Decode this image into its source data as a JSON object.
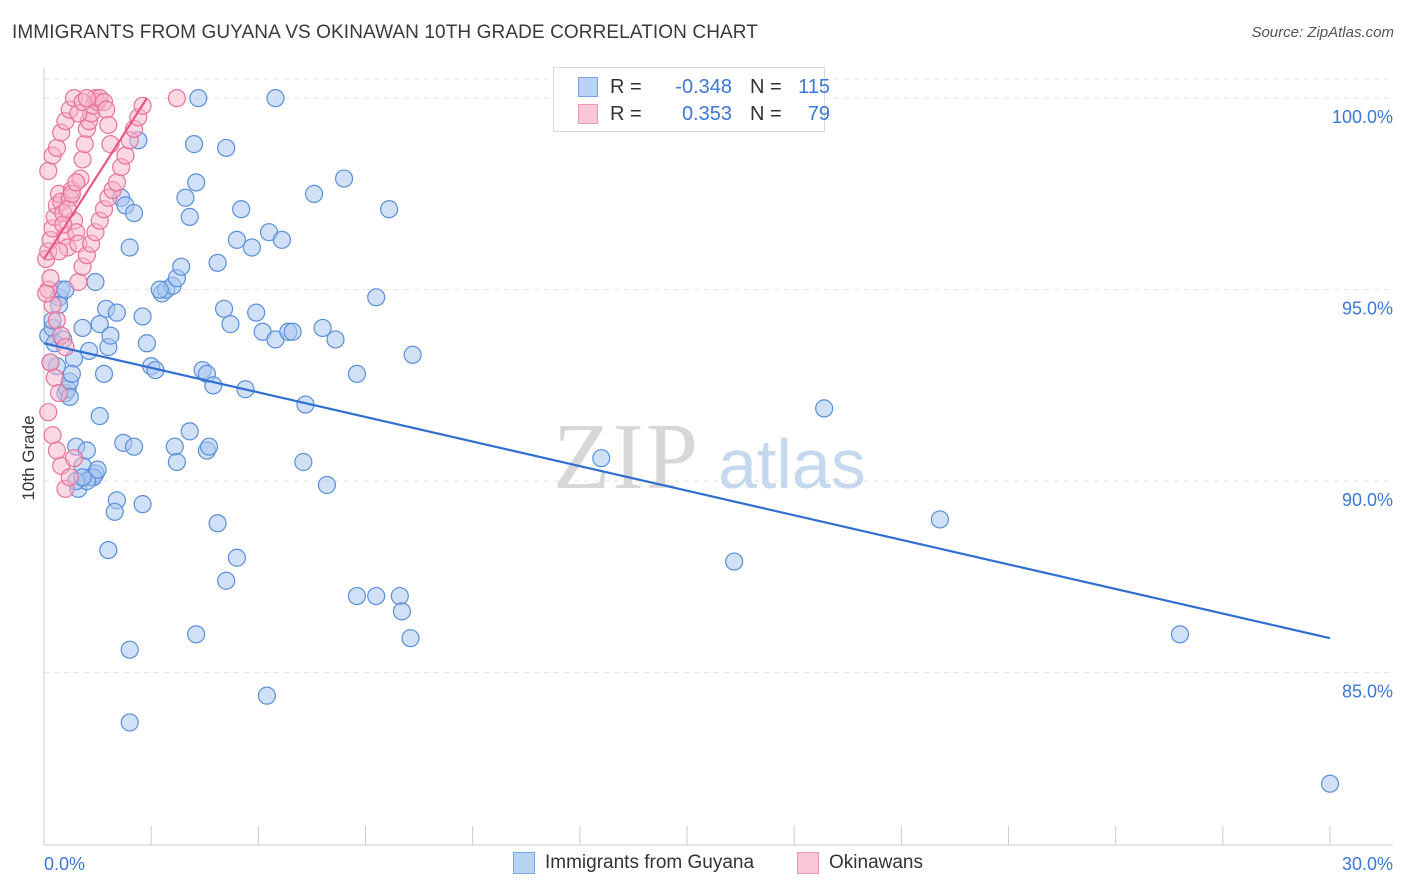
{
  "title": "IMMIGRANTS FROM GUYANA VS OKINAWAN 10TH GRADE CORRELATION CHART",
  "source": "Source: ZipAtlas.com",
  "watermark": {
    "zip": "ZIP",
    "atlas": "atlas"
  },
  "legend": {
    "rows": [
      {
        "r_label": "R =",
        "r_value": "-0.348",
        "n_label": "N =",
        "n_value": "115"
      },
      {
        "r_label": "R =",
        "r_value": "0.353",
        "n_label": "N =",
        "n_value": "79"
      }
    ]
  },
  "bottom_legend": [
    "Immigrants from Guyana",
    "Okinawans"
  ],
  "colors": {
    "blue_fill": "#a9c7f0",
    "blue_stroke": "#5b8fd9",
    "blue_line": "#2f6fd1",
    "pink_fill": "#f5b3c9",
    "pink_stroke": "#e8739b",
    "pink_line": "#e8588a",
    "axis_text": "#3b78d8",
    "grid": "#e3e3e3"
  },
  "chart_data": {
    "type": "scatter",
    "title": "IMMIGRANTS FROM GUYANA VS OKINAWAN 10TH GRADE CORRELATION CHART",
    "xlabel": "",
    "ylabel": "10th Grade",
    "xlim": [
      0,
      30
    ],
    "ylim": [
      80.5,
      100.5
    ],
    "x_tick_labels": [
      "0.0%",
      "30.0%"
    ],
    "y_ticks": [
      85,
      90,
      95,
      100
    ],
    "y_tick_labels": [
      "85.0%",
      "90.0%",
      "95.0%",
      "100.0%"
    ],
    "grid": "horizontal dashed",
    "series": [
      {
        "name": "Immigrants from Guyana",
        "color": "blue",
        "R": -0.348,
        "N": 115,
        "trend": {
          "x": [
            0.0,
            30.0
          ],
          "y": [
            93.6,
            85.9
          ]
        },
        "points": [
          [
            0.1,
            93.8
          ],
          [
            0.2,
            94.0
          ],
          [
            0.25,
            93.6
          ],
          [
            0.3,
            93.0
          ],
          [
            0.35,
            94.8
          ],
          [
            0.4,
            95.0
          ],
          [
            0.45,
            93.7
          ],
          [
            0.5,
            92.3
          ],
          [
            0.55,
            92.4
          ],
          [
            0.6,
            92.6
          ],
          [
            0.7,
            93.2
          ],
          [
            0.75,
            90.9
          ],
          [
            0.8,
            89.8
          ],
          [
            0.9,
            90.4
          ],
          [
            1.0,
            90.8
          ],
          [
            1.1,
            90.1
          ],
          [
            1.2,
            90.2
          ],
          [
            1.3,
            91.7
          ],
          [
            1.4,
            92.8
          ],
          [
            1.5,
            93.5
          ],
          [
            0.9,
            94.0
          ],
          [
            1.05,
            93.4
          ],
          [
            1.2,
            95.2
          ],
          [
            1.3,
            94.1
          ],
          [
            1.45,
            94.5
          ],
          [
            1.55,
            93.8
          ],
          [
            1.7,
            94.4
          ],
          [
            1.8,
            97.4
          ],
          [
            1.9,
            97.2
          ],
          [
            2.0,
            96.1
          ],
          [
            2.1,
            97.0
          ],
          [
            2.2,
            98.9
          ],
          [
            2.3,
            94.3
          ],
          [
            2.4,
            93.6
          ],
          [
            2.5,
            93.0
          ],
          [
            2.6,
            92.9
          ],
          [
            2.75,
            94.9
          ],
          [
            2.85,
            95.0
          ],
          [
            3.0,
            95.1
          ],
          [
            3.1,
            95.3
          ],
          [
            3.2,
            95.6
          ],
          [
            3.3,
            97.4
          ],
          [
            3.4,
            96.9
          ],
          [
            3.55,
            97.8
          ],
          [
            3.7,
            92.9
          ],
          [
            3.8,
            92.8
          ],
          [
            3.95,
            92.5
          ],
          [
            4.05,
            95.7
          ],
          [
            4.2,
            94.5
          ],
          [
            4.35,
            94.1
          ],
          [
            4.5,
            96.3
          ],
          [
            4.6,
            97.1
          ],
          [
            4.7,
            92.4
          ],
          [
            4.85,
            96.1
          ],
          [
            4.95,
            94.4
          ],
          [
            5.1,
            93.9
          ],
          [
            5.25,
            96.5
          ],
          [
            5.4,
            93.7
          ],
          [
            5.55,
            96.3
          ],
          [
            5.7,
            93.9
          ],
          [
            5.8,
            93.9
          ],
          [
            6.1,
            92.0
          ],
          [
            6.3,
            97.5
          ],
          [
            6.5,
            94.0
          ],
          [
            6.8,
            93.7
          ],
          [
            7.0,
            97.9
          ],
          [
            7.3,
            92.8
          ],
          [
            7.75,
            94.8
          ],
          [
            8.05,
            97.1
          ],
          [
            8.6,
            93.3
          ],
          [
            3.5,
            98.8
          ],
          [
            3.6,
            100.0
          ],
          [
            5.4,
            100.0
          ],
          [
            4.25,
            98.7
          ],
          [
            2.7,
            95.0
          ],
          [
            0.15,
            93.1
          ],
          [
            0.6,
            92.2
          ],
          [
            1.15,
            90.1
          ],
          [
            1.0,
            90.0
          ],
          [
            0.75,
            90.0
          ],
          [
            1.7,
            89.5
          ],
          [
            1.65,
            89.2
          ],
          [
            2.3,
            89.4
          ],
          [
            1.5,
            88.2
          ],
          [
            2.0,
            85.6
          ],
          [
            2.0,
            83.7
          ],
          [
            3.55,
            86.0
          ],
          [
            3.05,
            90.9
          ],
          [
            3.1,
            90.5
          ],
          [
            3.4,
            91.3
          ],
          [
            3.8,
            90.8
          ],
          [
            3.85,
            90.9
          ],
          [
            4.05,
            88.9
          ],
          [
            4.25,
            87.4
          ],
          [
            4.5,
            88.0
          ],
          [
            5.2,
            84.4
          ],
          [
            6.05,
            90.5
          ],
          [
            6.6,
            89.9
          ],
          [
            7.3,
            87.0
          ],
          [
            7.75,
            87.0
          ],
          [
            8.3,
            87.0
          ],
          [
            8.35,
            86.6
          ],
          [
            8.55,
            85.9
          ],
          [
            1.85,
            91.0
          ],
          [
            2.1,
            90.9
          ],
          [
            1.25,
            90.3
          ],
          [
            0.9,
            90.1
          ],
          [
            0.5,
            95.0
          ],
          [
            0.35,
            94.6
          ],
          [
            0.2,
            94.2
          ],
          [
            0.65,
            92.8
          ],
          [
            13.0,
            90.6
          ],
          [
            16.1,
            87.9
          ],
          [
            18.2,
            91.9
          ],
          [
            20.9,
            89.0
          ],
          [
            26.5,
            86.0
          ],
          [
            30.0,
            82.1
          ]
        ]
      },
      {
        "name": "Okinawans",
        "color": "pink",
        "R": 0.353,
        "N": 79,
        "trend": {
          "x": [
            0.0,
            2.4
          ],
          "y": [
            95.8,
            100.0
          ]
        },
        "points": [
          [
            0.05,
            95.8
          ],
          [
            0.1,
            96.0
          ],
          [
            0.15,
            96.3
          ],
          [
            0.2,
            96.6
          ],
          [
            0.25,
            96.9
          ],
          [
            0.3,
            97.2
          ],
          [
            0.35,
            97.5
          ],
          [
            0.4,
            97.3
          ],
          [
            0.45,
            97.0
          ],
          [
            0.5,
            96.4
          ],
          [
            0.55,
            96.1
          ],
          [
            0.6,
            97.4
          ],
          [
            0.65,
            97.6
          ],
          [
            0.7,
            96.8
          ],
          [
            0.75,
            96.5
          ],
          [
            0.8,
            96.2
          ],
          [
            0.85,
            97.9
          ],
          [
            0.9,
            98.4
          ],
          [
            0.95,
            98.8
          ],
          [
            1.0,
            99.2
          ],
          [
            1.05,
            99.4
          ],
          [
            1.1,
            99.6
          ],
          [
            1.15,
            99.8
          ],
          [
            1.2,
            100.0
          ],
          [
            1.25,
            99.9
          ],
          [
            1.3,
            100.0
          ],
          [
            1.4,
            99.9
          ],
          [
            1.45,
            99.7
          ],
          [
            1.5,
            99.3
          ],
          [
            1.55,
            98.8
          ],
          [
            0.1,
            98.1
          ],
          [
            0.2,
            98.5
          ],
          [
            0.3,
            98.7
          ],
          [
            0.4,
            99.1
          ],
          [
            0.5,
            99.4
          ],
          [
            0.6,
            99.7
          ],
          [
            0.7,
            100.0
          ],
          [
            0.8,
            99.6
          ],
          [
            0.9,
            99.9
          ],
          [
            1.0,
            100.0
          ],
          [
            0.1,
            95.0
          ],
          [
            0.2,
            94.6
          ],
          [
            0.3,
            94.2
          ],
          [
            0.4,
            93.8
          ],
          [
            0.5,
            93.5
          ],
          [
            0.15,
            93.1
          ],
          [
            0.25,
            92.7
          ],
          [
            0.35,
            92.3
          ],
          [
            0.1,
            91.8
          ],
          [
            0.2,
            91.2
          ],
          [
            0.3,
            90.8
          ],
          [
            0.4,
            90.4
          ],
          [
            0.5,
            89.8
          ],
          [
            0.6,
            90.1
          ],
          [
            0.7,
            90.6
          ],
          [
            0.8,
            95.2
          ],
          [
            0.9,
            95.6
          ],
          [
            1.0,
            95.9
          ],
          [
            1.1,
            96.2
          ],
          [
            1.2,
            96.5
          ],
          [
            1.3,
            96.8
          ],
          [
            1.4,
            97.1
          ],
          [
            1.5,
            97.4
          ],
          [
            1.6,
            97.6
          ],
          [
            1.7,
            97.8
          ],
          [
            1.8,
            98.2
          ],
          [
            1.9,
            98.5
          ],
          [
            2.0,
            98.9
          ],
          [
            2.1,
            99.2
          ],
          [
            2.2,
            99.5
          ],
          [
            2.3,
            99.8
          ],
          [
            3.1,
            100.0
          ],
          [
            0.05,
            94.9
          ],
          [
            0.15,
            95.3
          ],
          [
            0.35,
            96.0
          ],
          [
            0.45,
            96.7
          ],
          [
            0.55,
            97.1
          ],
          [
            0.65,
            97.5
          ],
          [
            0.75,
            97.8
          ]
        ]
      }
    ]
  }
}
